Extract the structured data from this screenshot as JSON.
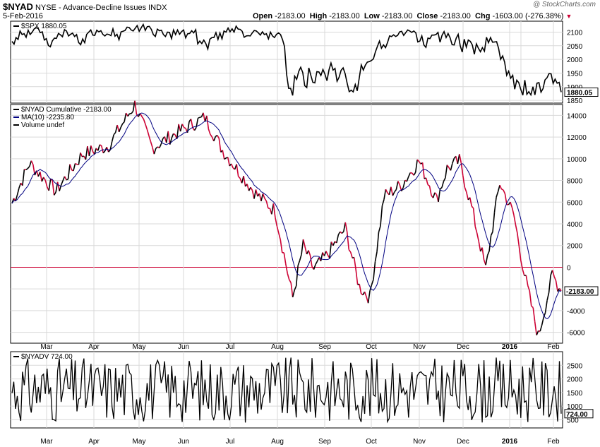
{
  "header": {
    "symbol": "$NYAD",
    "description": "NYSE - Advance-Decline Issues  INDX",
    "date": "5-Feb-2016",
    "watermark": "@ StockCharts.com",
    "open_label": "Open",
    "open": "-2183.00",
    "high_label": "High",
    "high": "-2183.00",
    "low_label": "Low",
    "low": "-2183.00",
    "close_label": "Close",
    "close": "-2183.00",
    "chg_label": "Chg",
    "chg": "-1603.00 (-276.38%)"
  },
  "colors": {
    "price": "#000000",
    "ma": "#000080",
    "down": "#cc0033",
    "zero": "#cc0033",
    "grid": "#d9d9d9"
  },
  "chart_data": [
    {
      "type": "line",
      "legend": [
        "$SPX 1880.05"
      ],
      "last_value": "1880.05",
      "ylim": [
        1840,
        2140
      ],
      "yticks": [
        1850,
        1900,
        1950,
        2000,
        2050,
        2100
      ],
      "months": [
        "Mar",
        "Apr",
        "May",
        "Jun",
        "Jul",
        "Aug",
        "Sep",
        "Oct",
        "Nov",
        "Dec",
        "2016",
        "Jan",
        "Feb"
      ],
      "series": [
        {
          "values": [
            2066,
            2056,
            2080,
            2073,
            2104,
            2091,
            2094,
            2081,
            2107,
            2091,
            2100,
            2112,
            2116,
            2113,
            2098,
            2101,
            2071,
            2076,
            2051,
            2046,
            2068,
            2078,
            2077,
            2095,
            2090,
            2083,
            2109,
            2104,
            2086,
            2092,
            2096,
            2084,
            2091,
            2062,
            2054,
            2075,
            2061,
            2092,
            2100,
            2108,
            2089,
            2088,
            2107,
            2101,
            2105,
            2092,
            2086,
            2093,
            2091,
            2087,
            2112,
            2085,
            2092,
            2072,
            2101,
            2103,
            2106,
            2118,
            2117,
            2108,
            2104,
            2114,
            2124,
            2103,
            2116,
            2128,
            2106,
            2120,
            2121,
            2110,
            2091,
            2084,
            2111,
            2105,
            2107,
            2091,
            2084,
            2100,
            2099,
            2076,
            2108,
            2091,
            2108,
            2092,
            2102,
            2108,
            2079,
            2094,
            2095,
            2105,
            2097,
            2109,
            2057,
            2067,
            2058,
            2071,
            2058,
            2038,
            2074,
            2080,
            2080,
            2098,
            2073,
            2097,
            2075,
            2104,
            2100,
            2115,
            2101,
            2112,
            2100,
            2122,
            2111,
            2110,
            2103,
            2081,
            2086,
            2087,
            2086,
            2097,
            2106,
            2104,
            2097,
            2089,
            2101,
            2091,
            2094,
            2075,
            2100,
            2086,
            2080,
            2092,
            2097,
            2091,
            2072,
            2047,
            1946,
            1894,
            1894,
            1868,
            1939,
            1927,
            1956,
            1971,
            1952,
            1904,
            1897,
            1969,
            1942,
            1916,
            1914,
            1955,
            1954,
            1941,
            1963,
            1946,
            1922,
            1962,
            1987,
            1961,
            1967,
            1920,
            1935,
            1960,
            1969,
            1948,
            1913,
            1882,
            1887,
            1881,
            1908,
            1885,
            1933,
            1980,
            1961,
            1979,
            1990,
            1992,
            1996,
            2002,
            2028,
            2048,
            2067,
            2041,
            2053,
            2043,
            2062,
            2086,
            2084,
            2090,
            2084,
            2088,
            2101,
            2103,
            2088,
            2098,
            2108,
            2104,
            2099,
            2104,
            2097,
            2064,
            2067,
            2086,
            2053,
            2044,
            2078,
            2076,
            2089,
            2089,
            2091,
            2099,
            2063,
            2088,
            2102,
            2080,
            2095,
            2079,
            2054,
            2053,
            2078,
            2092,
            2050,
            2027,
            2074,
            2045,
            2071,
            2066,
            2053,
            2019,
            2057,
            2041,
            2028,
            2043,
            2030,
            2081,
            2061,
            2080,
            2063,
            2064,
            2065,
            2041,
            2000,
            2013,
            1990,
            1942,
            1957,
            1931,
            1942,
            1891,
            1924,
            1915,
            1890,
            1869,
            1924,
            1872,
            1882,
            1870,
            1900,
            1870,
            1913,
            1915,
            1880,
            1893,
            1925,
            1933,
            1948,
            1947,
            1912,
            1928,
            1913,
            1916,
            1880.05
          ]
        }
      ]
    },
    {
      "type": "line",
      "legend": [
        "$NYAD Cumulative -2183.00",
        "MA(10) -2235.80",
        "Volume undef"
      ],
      "last_value": "-2183.00",
      "ylim": [
        -7000,
        15000
      ],
      "yticks": [
        -6000,
        -4000,
        -2000,
        0,
        2000,
        4000,
        6000,
        8000,
        10000,
        12000,
        14000
      ],
      "yticklabels": [
        "-6000",
        "-4000",
        "-2000",
        "0",
        "2000",
        "4000",
        "6000",
        "8000",
        "10000",
        "12000",
        "14000"
      ],
      "months": [
        "Mar",
        "Apr",
        "May",
        "Jun",
        "Jul",
        "Aug",
        "Sep",
        "Oct",
        "Nov",
        "Dec",
        "2016",
        "Jan",
        "Feb"
      ],
      "series": [
        {
          "name": "$NYAD Cumulative",
          "values": [
            5860,
            5225,
            5800,
            6143,
            6915,
            8101,
            7911,
            7829,
            9028,
            8664,
            9536,
            10208,
            10573,
            9862,
            9271,
            9627,
            8221,
            7730,
            6339,
            6882,
            7910,
            8098,
            7634,
            9059,
            8599,
            8247,
            10407,
            10159,
            9010,
            9522,
            10001,
            8956,
            9620,
            7574,
            6983,
            8568,
            7616,
            9826,
            10420,
            11150,
            9756,
            9634,
            11259,
            10661,
            11234,
            10259,
            9781,
            10429,
            10239,
            9790,
            11864,
            9691,
            10315,
            8832,
            11271,
            11424,
            11793,
            13053,
            12844,
            12182,
            11925,
            12687,
            13628,
            11935,
            12964,
            14088,
            12235,
            13367,
            13479,
            12649,
            11020,
            10532,
            12724,
            12239,
            12435,
            11154,
            10582,
            11854,
            11760,
            9949,
            12550,
            11176,
            12484,
            11224,
            12009,
            12452,
            10138,
            11362,
            11423,
            12203,
            11573,
            12572,
            8456,
            9272,
            8525,
            9584,
            8517,
            6925,
            9797,
            10226,
            10211,
            11717,
            9702,
            11644,
            9887,
            12178,
            11852,
            13040,
            11883,
            12798,
            11848,
            13606,
            12729,
            12603,
            12034,
            10247,
            10649,
            10703,
            10663,
            11521,
            12262,
            12042,
            11543,
            10876,
            11822,
            10997,
            11257,
            9731,
            11776,
            10599,
            10107,
            11109,
            11479,
            11047,
            9431,
            7362,
            4956,
            3254,
            3265,
            2399,
            5030,
            4570,
            5510,
            5994,
            5430,
            3830,
            3580,
            5950,
            5030,
            4180,
            4130,
            5480,
            5460,
            5030,
            5850,
            5220,
            4470,
            5830,
            6725,
            5850,
            6010,
            4500,
            4950,
            5680,
            6080,
            5410,
            4290,
            3320,
            3480,
            3280,
            4270,
            3460,
            4940,
            6540,
            5940,
            6610,
            7150,
            7090,
            7380,
            7540,
            8340,
            9090,
            9760,
            8870,
            9260,
            8960,
            9580,
            10410,
            10350,
            10560,
            10340,
            10470,
            10930,
            11010,
            10450,
            10800,
            11150,
            10950,
            10790,
            10960,
            10730,
            9580,
            9650,
            10350,
            9120,
            8780,
            10100,
            10030,
            10510,
            10480,
            10550,
            10870,
            9590,
            10440,
            10990,
            10160,
            10690,
            10200,
            9330,
            9280,
            10170,
            10630,
            9190,
            8400,
            10040,
            9030,
            9930,
            9750,
            9290,
            8170,
            9480,
            8870,
            8440,
            8970,
            8560,
            10290,
            9600,
            10250,
            9670,
            9710,
            9750,
            8900,
            7520,
            7990,
            7190,
            5460,
            6060,
            5140,
            5550,
            3810,
            4950,
            4620,
            3750,
            3020,
            4920,
            3140,
            3480,
            3060,
            4080,
            3080,
            4530,
            4620,
            3400,
            3840,
            4960,
            5240,
            5790,
            5760,
            4530,
            5100,
            4610,
            4690,
            -2183
          ]
        },
        {
          "name": "MA(10)",
          "values": []
        }
      ]
    },
    {
      "type": "line",
      "legend": [
        "$NYADV 724.00"
      ],
      "last_value": "724.00",
      "ylim": [
        200,
        3000
      ],
      "yticks": [
        500,
        1000,
        1500,
        2000,
        2500
      ],
      "months": [
        "Mar",
        "Apr",
        "May",
        "Jun",
        "Jul",
        "Aug",
        "Sep",
        "Oct",
        "Nov",
        "Dec",
        "2016",
        "Jan",
        "Feb"
      ]
    }
  ]
}
